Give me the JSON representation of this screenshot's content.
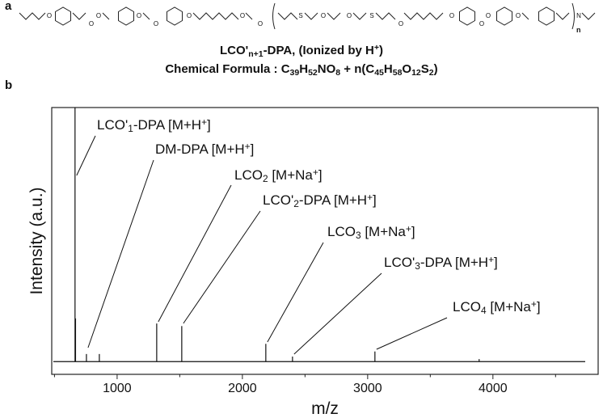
{
  "structure": {
    "atom_o": "O",
    "atom_s": "S",
    "atom_n": "N",
    "repeat": "n"
  },
  "panel_a": "a",
  "panel_b": "b",
  "caption_line1": [
    {
      "t": "LCO'"
    },
    {
      "sub": "n+1"
    },
    {
      "t": "-DPA, (Ionized by H"
    },
    {
      "sup": "+"
    },
    {
      "t": ")"
    }
  ],
  "caption_line2": [
    {
      "t": "Chemical Formula : C"
    },
    {
      "sub": "39"
    },
    {
      "t": "H"
    },
    {
      "sub": "52"
    },
    {
      "t": "NO"
    },
    {
      "sub": "8"
    },
    {
      "t": " + n(C"
    },
    {
      "sub": "45"
    },
    {
      "t": "H"
    },
    {
      "sub": "58"
    },
    {
      "t": "O"
    },
    {
      "sub": "12"
    },
    {
      "t": "S"
    },
    {
      "sub": "2"
    },
    {
      "t": ")"
    }
  ],
  "chart_data": {
    "type": "stem",
    "x_label": "m/z",
    "y_label": "Intensity (a.u.)",
    "x": [
      664,
      668,
      755,
      858,
      1316,
      1516,
      2187,
      2400,
      3058,
      3890
    ],
    "values": [
      100,
      17,
      3,
      3,
      15,
      14,
      7,
      2,
      4,
      1
    ],
    "color": "#111111",
    "xlim": [
      478,
      4840
    ],
    "ylim": [
      -5,
      100
    ],
    "xticks": [
      1000,
      2000,
      3000,
      4000
    ],
    "xminor_ticks": [
      500,
      1500,
      2500,
      3500,
      4500
    ],
    "annotations": [
      [
        {
          "t": "LCO'"
        },
        {
          "sub": "1"
        },
        {
          "t": "-DPA [M+H"
        },
        {
          "sup": "+"
        },
        {
          "t": "]"
        }
      ],
      [
        {
          "t": "DM-DPA [M+H"
        },
        {
          "sup": "+"
        },
        {
          "t": "]"
        }
      ],
      [
        {
          "t": "LCO"
        },
        {
          "sub": "2"
        },
        {
          "t": " [M+Na"
        },
        {
          "sup": "+"
        },
        {
          "t": "]"
        }
      ],
      [
        {
          "t": "LCO'"
        },
        {
          "sub": "2"
        },
        {
          "t": "-DPA [M+H"
        },
        {
          "sup": "+"
        },
        {
          "t": "]"
        }
      ],
      [
        {
          "t": "LCO"
        },
        {
          "sub": "3"
        },
        {
          "t": " [M+Na"
        },
        {
          "sup": "+"
        },
        {
          "t": "]"
        }
      ],
      [
        {
          "t": "LCO'"
        },
        {
          "sub": "3"
        },
        {
          "t": "-DPA [M+H"
        },
        {
          "sup": "+"
        },
        {
          "t": "]"
        }
      ],
      [
        {
          "t": "LCO"
        },
        {
          "sub": "4"
        },
        {
          "t": " [M+Na"
        },
        {
          "sup": "+"
        },
        {
          "t": "]"
        }
      ]
    ]
  }
}
